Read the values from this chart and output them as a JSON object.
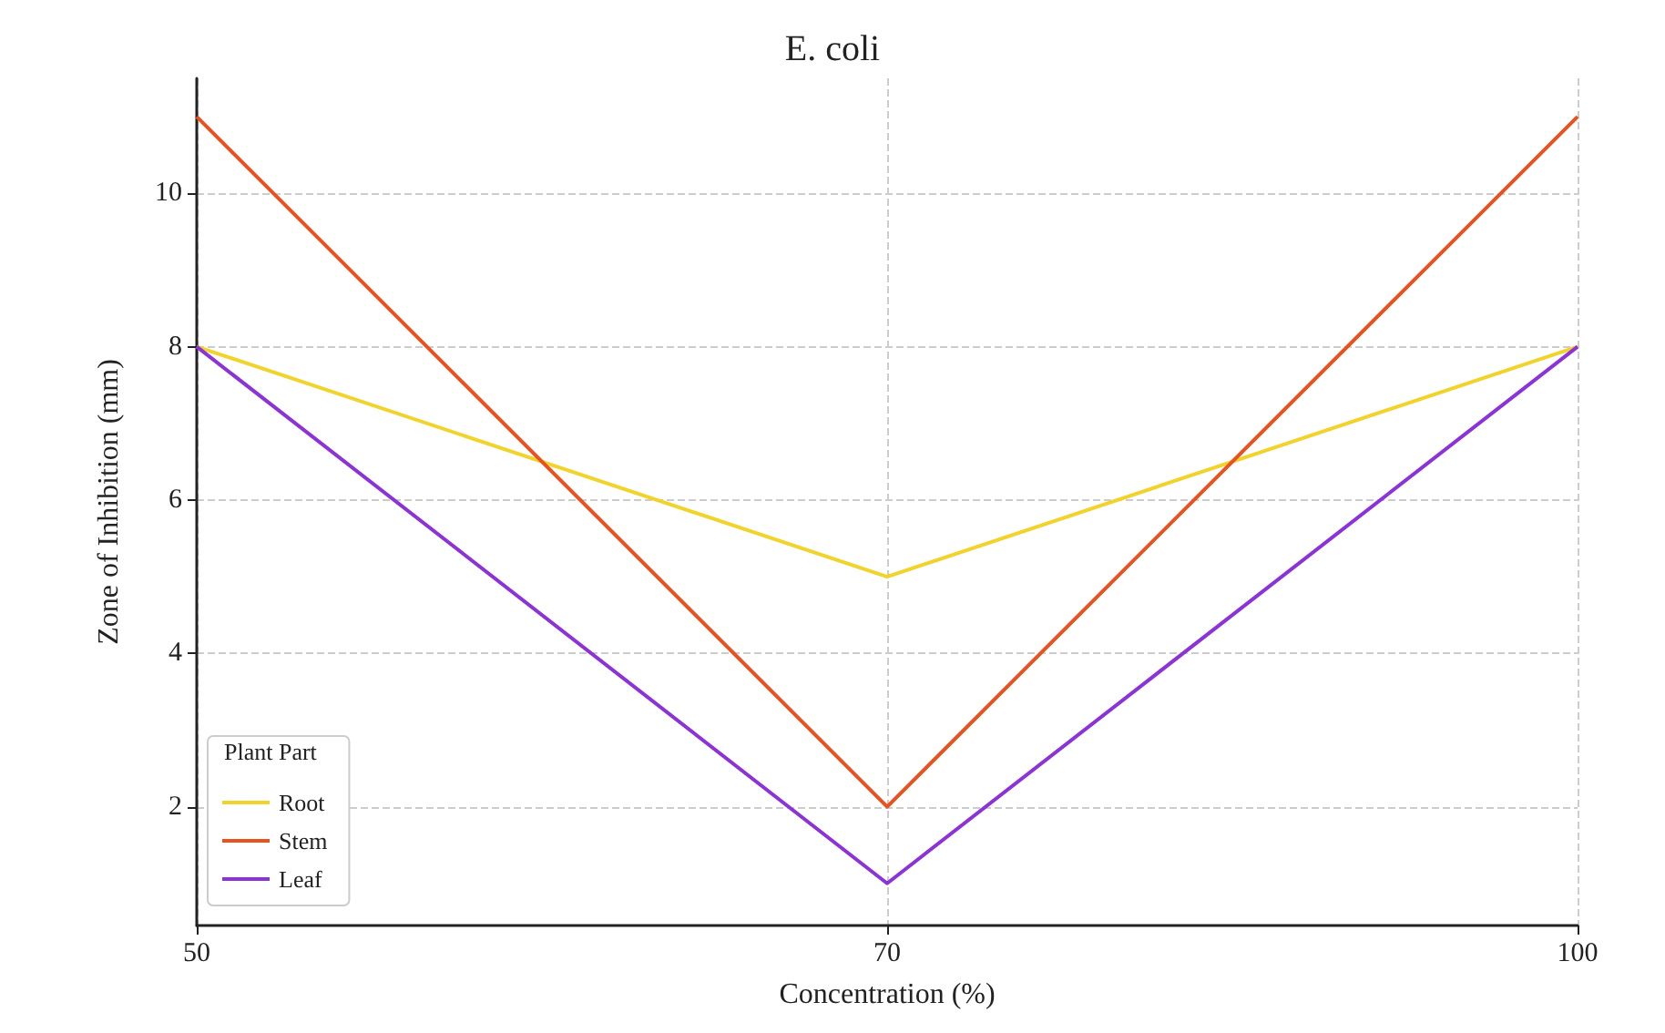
{
  "chart_data": {
    "type": "line",
    "title": "E. coli",
    "xlabel": "Concentration (%)",
    "ylabel": "Zone of Inhibition (mm)",
    "legend_title": "Plant Part",
    "categories": [
      "50",
      "70",
      "100"
    ],
    "series": [
      {
        "name": "Root",
        "color": "#f2d32c",
        "values": [
          8,
          5,
          8
        ]
      },
      {
        "name": "Stem",
        "color": "#e8521e",
        "values": [
          11,
          2,
          11
        ]
      },
      {
        "name": "Leaf",
        "color": "#8b32d8",
        "values": [
          8,
          1,
          8
        ]
      }
    ],
    "ylim": [
      0.45,
      11.5
    ],
    "yticks": [
      2,
      4,
      6,
      8,
      10
    ],
    "grid": true,
    "legend": "bottom left",
    "marker": "none",
    "line_style": "solid"
  }
}
